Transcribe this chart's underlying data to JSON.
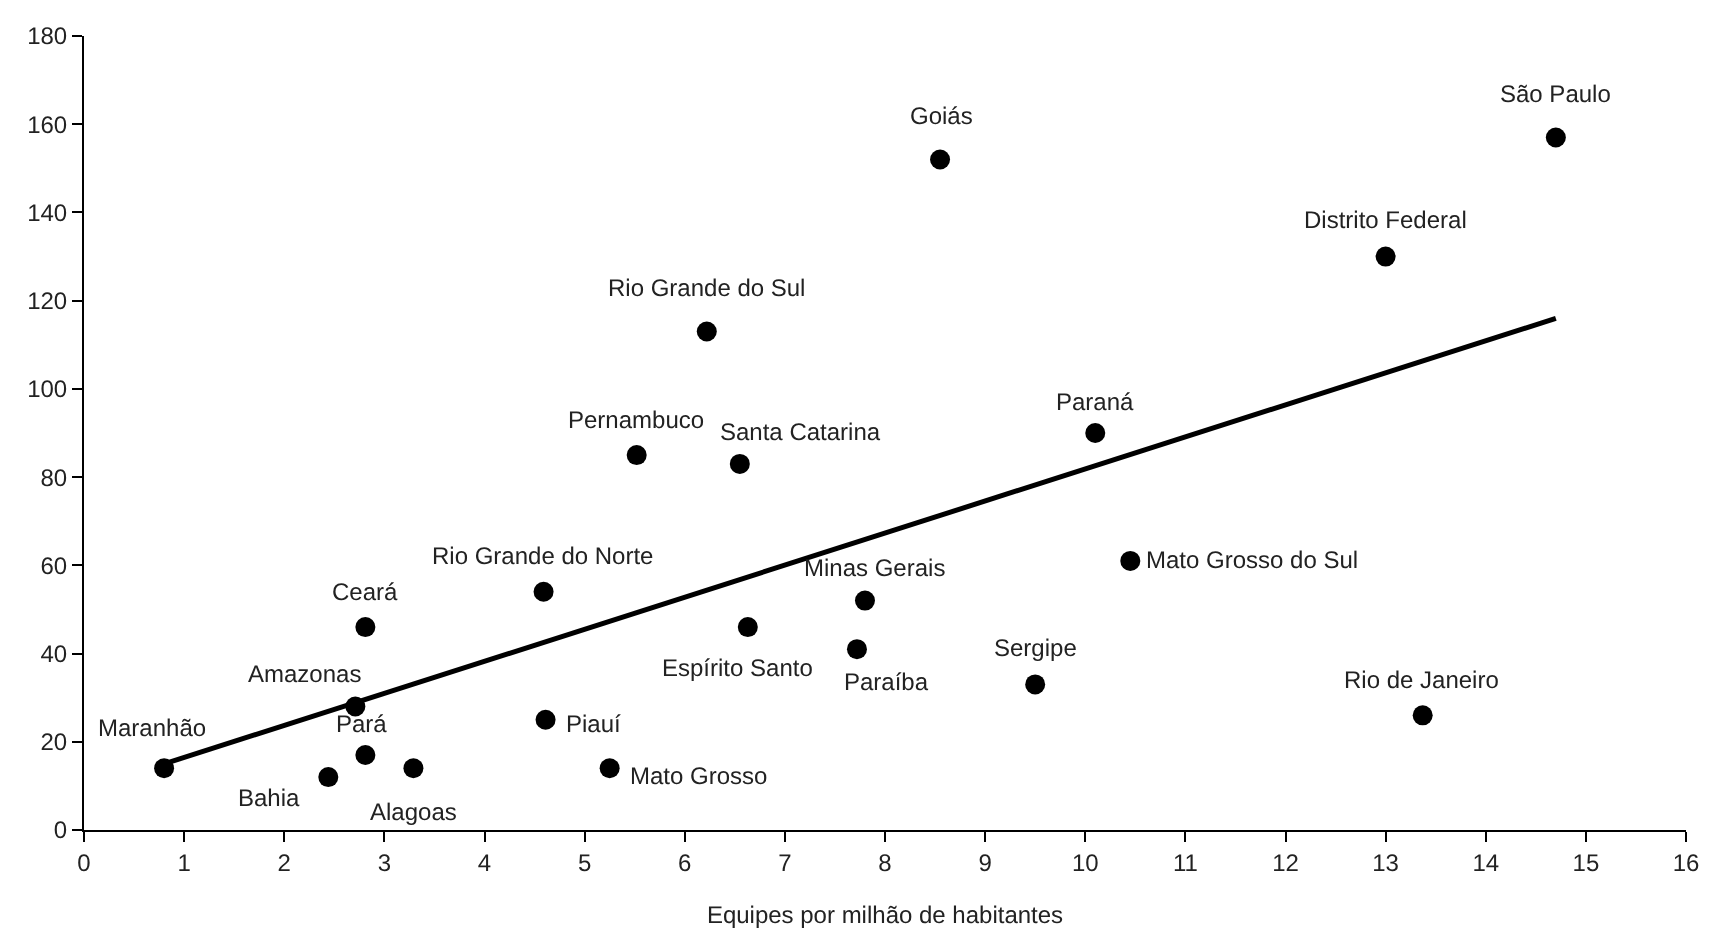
{
  "chart_data": {
    "type": "scatter",
    "xlabel": "Equipes por milhão de habitantes",
    "xlim": [
      0,
      16
    ],
    "xticks": [
      0,
      1,
      2,
      3,
      4,
      5,
      6,
      7,
      8,
      9,
      10,
      11,
      12,
      13,
      14,
      15,
      16
    ],
    "ylim": [
      0,
      180
    ],
    "yticks": [
      0,
      20,
      40,
      60,
      80,
      100,
      120,
      140,
      160,
      180
    ],
    "marker": "circle",
    "series": [
      {
        "color": "#000000",
        "x": [
          0.8,
          2.44,
          2.71,
          2.81,
          2.81,
          3.29,
          4.59,
          4.61,
          5.25,
          5.52,
          6.22,
          6.55,
          6.63,
          7.72,
          7.8,
          8.55,
          9.5,
          10.1,
          10.45,
          13.0,
          13.37,
          14.7
        ],
        "values": [
          14,
          12,
          28,
          17,
          46,
          14,
          54,
          25,
          14,
          85,
          113,
          83,
          46,
          41,
          52,
          152,
          33,
          90,
          61,
          130,
          26,
          157
        ]
      },
      {
        "type": "line",
        "color": "#000000",
        "x": [
          0.8,
          14.7
        ],
        "values": [
          15,
          116
        ],
        "line_style": "solid",
        "marker": "none"
      }
    ],
    "annotations": [
      {
        "text": "Maranhão",
        "x": 0.8,
        "y": 14
      },
      {
        "text": "Bahia",
        "x": 2.44,
        "y": 12
      },
      {
        "text": "Amazonas",
        "x": 2.71,
        "y": 28
      },
      {
        "text": "Pará",
        "x": 2.81,
        "y": 17
      },
      {
        "text": "Ceará",
        "x": 2.81,
        "y": 46
      },
      {
        "text": "Alagoas",
        "x": 3.29,
        "y": 14
      },
      {
        "text": "Rio Grande do Norte",
        "x": 4.59,
        "y": 54
      },
      {
        "text": "Piauí",
        "x": 4.61,
        "y": 25
      },
      {
        "text": "Mato Grosso",
        "x": 5.25,
        "y": 14
      },
      {
        "text": "Pernambuco",
        "x": 5.52,
        "y": 85
      },
      {
        "text": "Rio Grande do Sul",
        "x": 6.22,
        "y": 113
      },
      {
        "text": "Santa Catarina",
        "x": 6.55,
        "y": 83
      },
      {
        "text": "Espírito Santo",
        "x": 6.63,
        "y": 46
      },
      {
        "text": "Paraíba",
        "x": 7.72,
        "y": 41
      },
      {
        "text": "Minas Gerais",
        "x": 7.8,
        "y": 52
      },
      {
        "text": "Goiás",
        "x": 8.55,
        "y": 152
      },
      {
        "text": "Sergipe",
        "x": 9.5,
        "y": 33
      },
      {
        "text": "Paraná",
        "x": 10.1,
        "y": 90
      },
      {
        "text": "Mato Grosso do Sul",
        "x": 10.45,
        "y": 61
      },
      {
        "text": "Distrito Federal",
        "x": 13.0,
        "y": 130
      },
      {
        "text": "Rio de Janeiro",
        "x": 13.37,
        "y": 26
      },
      {
        "text": "São Paulo",
        "x": 14.7,
        "y": 157
      }
    ]
  }
}
